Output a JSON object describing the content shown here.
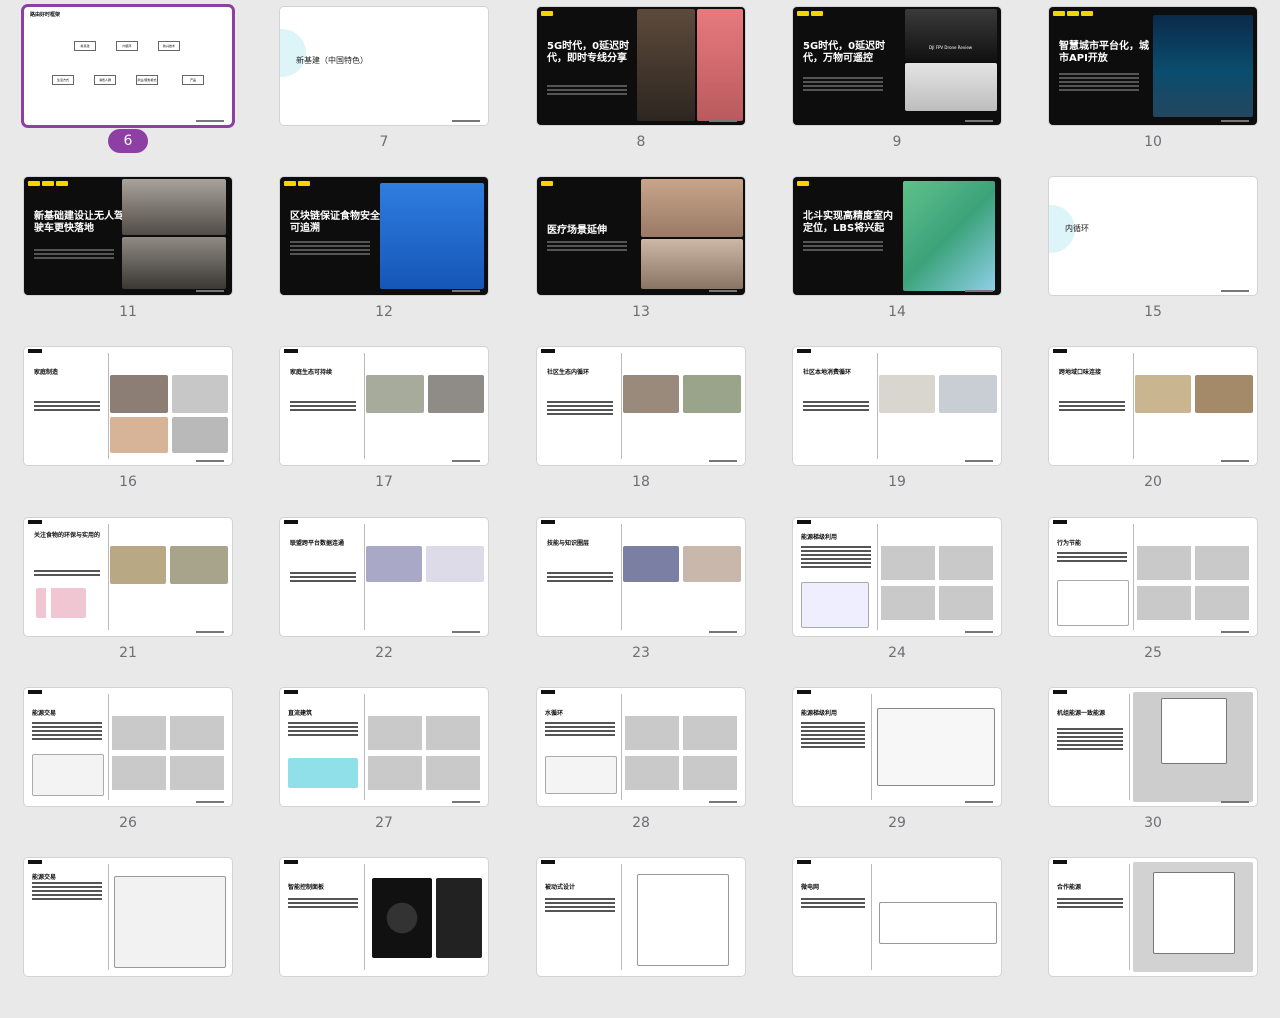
{
  "slides": [
    {
      "number": "6",
      "selected": true,
      "theme": "light",
      "title": "路由好时框架",
      "boxes": [
        "新基建",
        "内循环",
        "新兴技术",
        "生活方式",
        "消费人群",
        "商业/服务模式",
        "产品"
      ]
    },
    {
      "number": "7",
      "theme": "section",
      "title": "新基建（中国特色）"
    },
    {
      "number": "8",
      "theme": "dark",
      "title": "5G时代，0延迟时代，即时专线分享"
    },
    {
      "number": "9",
      "theme": "dark",
      "title": "5G时代，0延迟时代，万物可遥控",
      "caption": "DJI FPV Drone Review"
    },
    {
      "number": "10",
      "theme": "dark",
      "title": "智慧城市平台化，城市API开放"
    },
    {
      "number": "11",
      "theme": "dark",
      "title": "新基础建设让无人驾驶车更快落地"
    },
    {
      "number": "12",
      "theme": "dark",
      "title": "区块链保证食物安全可追溯"
    },
    {
      "number": "13",
      "theme": "dark",
      "title": "医疗场景延伸"
    },
    {
      "number": "14",
      "theme": "dark",
      "title": "北斗实现高精度室内定位，LBS将兴起"
    },
    {
      "number": "15",
      "theme": "section",
      "title": "内循环"
    },
    {
      "number": "16",
      "theme": "white",
      "title": "家庭制造"
    },
    {
      "number": "17",
      "theme": "white",
      "title": "家庭生态可持续"
    },
    {
      "number": "18",
      "theme": "white",
      "title": "社区生态内循环"
    },
    {
      "number": "19",
      "theme": "white",
      "title": "社区本地消费循环"
    },
    {
      "number": "20",
      "theme": "white",
      "title": "跨地域口味连接"
    },
    {
      "number": "21",
      "theme": "white",
      "title": "关注食物的环保与实用的"
    },
    {
      "number": "22",
      "theme": "white",
      "title": "联盟跨平台数据连通"
    },
    {
      "number": "23",
      "theme": "white",
      "title": "技能与知识圈层"
    },
    {
      "number": "24",
      "theme": "white",
      "title": "能源梯级利用"
    },
    {
      "number": "25",
      "theme": "white",
      "title": "行为节能"
    },
    {
      "number": "26",
      "theme": "white",
      "title": "能源交易"
    },
    {
      "number": "27",
      "theme": "white",
      "title": "直流建筑"
    },
    {
      "number": "28",
      "theme": "white",
      "title": "水循环"
    },
    {
      "number": "29",
      "theme": "white",
      "title": "能源梯级利用"
    },
    {
      "number": "30",
      "theme": "white",
      "title": "机组能源一致能源"
    },
    {
      "number": "31",
      "theme": "white",
      "title": "能源交易"
    },
    {
      "number": "32",
      "theme": "white",
      "title": "智能控制面板"
    },
    {
      "number": "33",
      "theme": "white",
      "title": "被动式设计"
    },
    {
      "number": "34",
      "theme": "white",
      "title": "微电网"
    },
    {
      "number": "35",
      "theme": "white",
      "title": "合作能源"
    }
  ]
}
